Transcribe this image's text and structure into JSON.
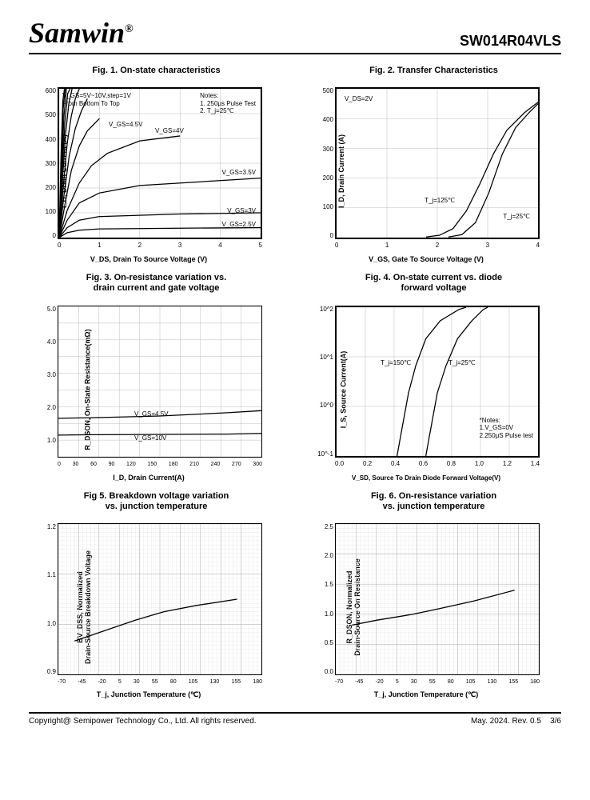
{
  "header": {
    "logo": "Samwin",
    "reg": "®",
    "partno": "SW014R04VLS"
  },
  "footer": {
    "copyright": "Copyright@ Semipower Technology Co., Ltd. All rights reserved.",
    "rev": "May. 2024. Rev. 0.5",
    "page": "3/6"
  },
  "fig1": {
    "title": "Fig. 1. On-state characteristics",
    "xlabel": "V_DS, Drain To Source Voltage (V)",
    "ylabel": "I_D, Drain Current (A)",
    "xticks": [
      "0",
      "1",
      "2",
      "3",
      "4",
      "5"
    ],
    "yticks": [
      "0",
      "100",
      "200",
      "300",
      "400",
      "500",
      "600"
    ],
    "xlim": [
      0,
      5
    ],
    "ylim": [
      0,
      600
    ],
    "note1": "V_GS=5V~10V,step=1V",
    "note2": "From Bottom To Top",
    "notes": "Notes:\n1. 250μs Pulse Test\n2. T_j=25℃",
    "labels": {
      "v45": "V_GS=4.5V",
      "v4": "V_GS=4V",
      "v35": "V_GS=3.5V",
      "v3": "V_GS=3V",
      "v25": "V_GS=2.5V"
    },
    "curves": [
      [
        [
          0,
          0
        ],
        [
          0.2,
          20
        ],
        [
          0.5,
          30
        ],
        [
          1,
          35
        ],
        [
          3,
          38
        ],
        [
          5,
          40
        ]
      ],
      [
        [
          0,
          0
        ],
        [
          0.2,
          40
        ],
        [
          0.5,
          70
        ],
        [
          1,
          85
        ],
        [
          3,
          95
        ],
        [
          5,
          100
        ]
      ],
      [
        [
          0,
          0
        ],
        [
          0.2,
          70
        ],
        [
          0.5,
          140
        ],
        [
          1,
          180
        ],
        [
          2,
          210
        ],
        [
          5,
          240
        ]
      ],
      [
        [
          0,
          0
        ],
        [
          0.2,
          110
        ],
        [
          0.5,
          220
        ],
        [
          0.8,
          290
        ],
        [
          1.2,
          340
        ],
        [
          2,
          390
        ],
        [
          3,
          410
        ]
      ],
      [
        [
          0,
          0
        ],
        [
          0.15,
          140
        ],
        [
          0.3,
          270
        ],
        [
          0.5,
          370
        ],
        [
          0.7,
          430
        ],
        [
          1,
          480
        ]
      ],
      [
        [
          0,
          0
        ],
        [
          0.12,
          170
        ],
        [
          0.25,
          330
        ],
        [
          0.4,
          440
        ],
        [
          0.55,
          510
        ],
        [
          0.7,
          560
        ]
      ],
      [
        [
          0,
          0
        ],
        [
          0.1,
          200
        ],
        [
          0.2,
          380
        ],
        [
          0.3,
          490
        ],
        [
          0.4,
          560
        ],
        [
          0.5,
          600
        ]
      ],
      [
        [
          0,
          0
        ],
        [
          0.08,
          230
        ],
        [
          0.16,
          420
        ],
        [
          0.24,
          540
        ],
        [
          0.32,
          600
        ]
      ],
      [
        [
          0,
          0
        ],
        [
          0.07,
          260
        ],
        [
          0.14,
          460
        ],
        [
          0.21,
          580
        ],
        [
          0.27,
          600
        ]
      ],
      [
        [
          0,
          0
        ],
        [
          0.06,
          280
        ],
        [
          0.12,
          490
        ],
        [
          0.18,
          600
        ]
      ],
      [
        [
          0,
          0
        ],
        [
          0.05,
          300
        ],
        [
          0.1,
          520
        ],
        [
          0.15,
          600
        ]
      ],
      [
        [
          0,
          0
        ],
        [
          0.045,
          320
        ],
        [
          0.09,
          550
        ],
        [
          0.13,
          600
        ]
      ]
    ],
    "grid_major": true,
    "aspect_border": "thick"
  },
  "fig2": {
    "title": "Fig. 2. Transfer Characteristics",
    "xlabel": "V_GS, Gate To Source Voltage (V)",
    "ylabel": "I_D, Drain Current (A)",
    "xticks": [
      "0",
      "1",
      "2",
      "3",
      "4"
    ],
    "yticks": [
      "0",
      "100",
      "200",
      "300",
      "400",
      "500"
    ],
    "xlim": [
      0,
      4.5
    ],
    "ylim": [
      0,
      500
    ],
    "vds": "V_DS=2V",
    "t125": "T_j=125℃",
    "t25": "T_j=25℃",
    "curves": [
      [
        [
          2.0,
          2
        ],
        [
          2.3,
          8
        ],
        [
          2.6,
          30
        ],
        [
          2.9,
          90
        ],
        [
          3.2,
          180
        ],
        [
          3.5,
          280
        ],
        [
          3.8,
          360
        ],
        [
          4.2,
          420
        ],
        [
          4.5,
          455
        ]
      ],
      [
        [
          2.5,
          2
        ],
        [
          2.8,
          10
        ],
        [
          3.1,
          50
        ],
        [
          3.4,
          150
        ],
        [
          3.7,
          280
        ],
        [
          4.0,
          370
        ],
        [
          4.3,
          420
        ],
        [
          4.5,
          450
        ]
      ]
    ]
  },
  "fig3": {
    "title": "Fig. 3. On-resistance variation vs.\ndrain current and gate voltage",
    "xlabel": "I_D, Drain Current(A)",
    "ylabel": "R_DSON, On-State Resistance(mΩ)",
    "xticks": [
      "0",
      "30",
      "60",
      "90",
      "120",
      "150",
      "180",
      "210",
      "240",
      "270",
      "300"
    ],
    "yticks": [
      "",
      "1.0",
      "",
      "2.0",
      "",
      "3.0",
      "",
      "4.0",
      "",
      "5.0"
    ],
    "xlim": [
      0,
      300
    ],
    "ylim": [
      0.5,
      5.0
    ],
    "v45": "V_GS=4.5V",
    "v10": "V_GS=10V",
    "curves": [
      [
        [
          0,
          1.65
        ],
        [
          50,
          1.67
        ],
        [
          150,
          1.72
        ],
        [
          250,
          1.82
        ],
        [
          300,
          1.88
        ]
      ],
      [
        [
          0,
          1.15
        ],
        [
          50,
          1.16
        ],
        [
          150,
          1.17
        ],
        [
          250,
          1.18
        ],
        [
          300,
          1.2
        ]
      ]
    ]
  },
  "fig4": {
    "title": "Fig. 4. On-state current vs. diode\nforward voltage",
    "xlabel": "V_SD, Source To Drain Diode Forward Voltage(V)",
    "ylabel": "I_S, Source Current(A)",
    "xticks": [
      "0.0",
      "0.2",
      "0.4",
      "0.6",
      "0.8",
      "1.0",
      "1.2",
      "1.4"
    ],
    "yticks": [
      "10^-1",
      "10^0",
      "10^1",
      "10^2"
    ],
    "xlim": [
      0,
      1.4
    ],
    "ylim": [
      -1,
      2.3
    ],
    "t150": "T_j=150℃",
    "t25": "T_j=25℃",
    "notes": "*Notes:\n1.V_GS=0V\n2.250μS Pulse test",
    "curves": [
      [
        [
          0.42,
          -1
        ],
        [
          0.46,
          -0.3
        ],
        [
          0.5,
          0.4
        ],
        [
          0.55,
          1.0
        ],
        [
          0.62,
          1.6
        ],
        [
          0.72,
          2.0
        ],
        [
          0.85,
          2.25
        ],
        [
          0.9,
          2.3
        ]
      ],
      [
        [
          0.62,
          -1
        ],
        [
          0.66,
          -0.3
        ],
        [
          0.7,
          0.4
        ],
        [
          0.76,
          1.0
        ],
        [
          0.84,
          1.6
        ],
        [
          0.94,
          2.0
        ],
        [
          1.02,
          2.25
        ],
        [
          1.05,
          2.3
        ]
      ]
    ]
  },
  "fig5": {
    "title": "Fig 5. Breakdown voltage variation\nvs. junction temperature",
    "xlabel": "T_j, Junction Temperature (℃)",
    "ylabel": "BV_DSS, Normalized\nDrain-Source Breakdown Voltage",
    "xticks": [
      "-70",
      "-45",
      "-20",
      "5",
      "30",
      "55",
      "80",
      "105",
      "130",
      "155",
      "180"
    ],
    "yticks": [
      "0.9",
      "1.0",
      "1.1",
      "1.2"
    ],
    "xlim": [
      -70,
      180
    ],
    "ylim": [
      0.87,
      1.23
    ],
    "curves": [
      [
        [
          -50,
          0.95
        ],
        [
          -20,
          0.97
        ],
        [
          25,
          1.0
        ],
        [
          60,
          1.02
        ],
        [
          100,
          1.035
        ],
        [
          150,
          1.05
        ]
      ]
    ]
  },
  "fig6": {
    "title": "Fig. 6. On-resistance variation\nvs. junction temperature",
    "xlabel": "T_j, Junction Temperature (℃)",
    "ylabel": "R_DSON, Normalized\nDrain-Source On Resistance",
    "xticks": [
      "-70",
      "-45",
      "-20",
      "5",
      "30",
      "55",
      "80",
      "105",
      "130",
      "155",
      "180"
    ],
    "yticks": [
      "0.0",
      "0.5",
      "1.0",
      "1.5",
      "2.0",
      "2.5"
    ],
    "xlim": [
      -70,
      180
    ],
    "ylim": [
      0,
      2.5
    ],
    "curves": [
      [
        [
          -50,
          0.82
        ],
        [
          -20,
          0.9
        ],
        [
          25,
          1.0
        ],
        [
          60,
          1.1
        ],
        [
          100,
          1.22
        ],
        [
          150,
          1.4
        ]
      ]
    ]
  },
  "style": {
    "line_color": "#000000",
    "grid_color": "#cccccc",
    "grid_major_color": "#999999",
    "background": "#ffffff"
  }
}
